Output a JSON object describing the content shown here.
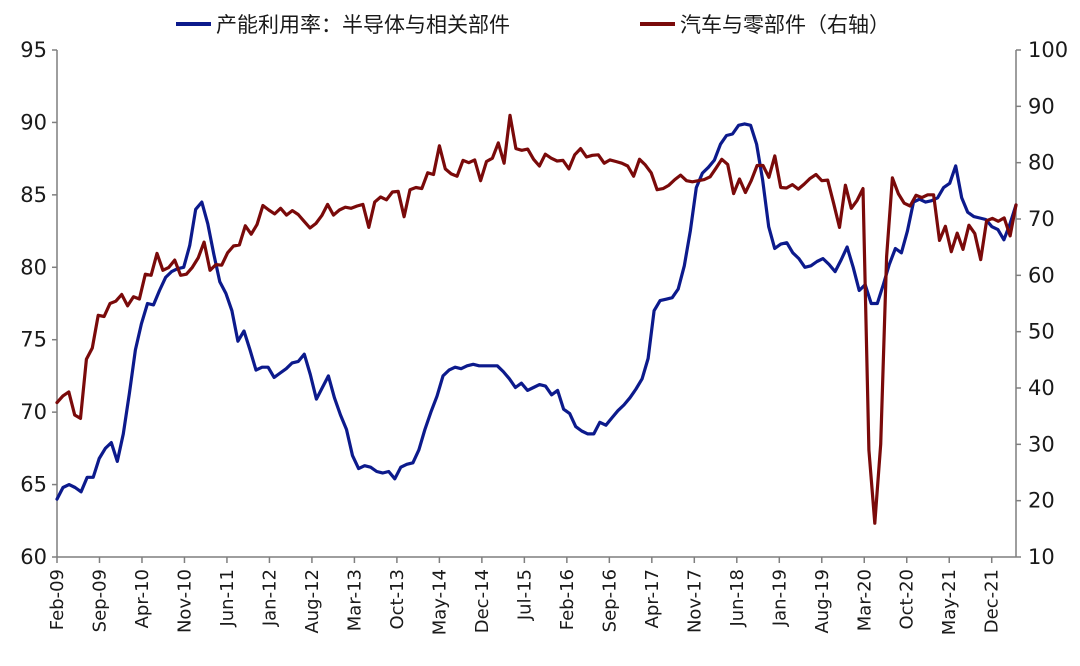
{
  "legend": {
    "series1_label": "产能利用率：半导体与相关部件",
    "series2_label": "汽车与零部件（右轴）"
  },
  "colors": {
    "series1": "#0c1a8c",
    "series2": "#7a0a0a",
    "axis": "#7f7f7f"
  },
  "chart_data": {
    "type": "line",
    "title": "",
    "xlabel": "",
    "ylabel": "",
    "y_left_lim": [
      60,
      95
    ],
    "y_left_ticks": [
      95,
      90,
      85,
      80,
      75,
      70,
      65,
      60
    ],
    "y_right_lim": [
      10,
      100
    ],
    "y_right_ticks": [
      100,
      90,
      80,
      70,
      60,
      50,
      40,
      30,
      20,
      10
    ],
    "x_tick_labels": [
      "Feb-09",
      "Sep-09",
      "Apr-10",
      "Nov-10",
      "Jun-11",
      "Jan-12",
      "Aug-12",
      "Mar-13",
      "Oct-13",
      "May-14",
      "Dec-14",
      "Jul-15",
      "Feb-16",
      "Sep-16",
      "Apr-17",
      "Nov-17",
      "Jun-18",
      "Jan-19",
      "Aug-19",
      "Mar-20",
      "Oct-20",
      "May-21",
      "Dec-21"
    ],
    "x_start": "2009-02",
    "x_end": "2022-04",
    "grid": false,
    "legend_position": "top",
    "series": [
      {
        "name": "产能利用率：半导体与相关部件",
        "axis": "left",
        "values": [
          64.0,
          64.8,
          65.0,
          64.8,
          64.5,
          65.5,
          65.5,
          66.8,
          67.5,
          67.9,
          66.6,
          68.5,
          71.3,
          74.3,
          76.1,
          77.5,
          77.4,
          78.4,
          79.3,
          79.7,
          79.9,
          80.0,
          81.5,
          84.0,
          84.5,
          83.0,
          80.9,
          79.0,
          78.2,
          77.0,
          74.9,
          75.6,
          74.3,
          72.9,
          73.1,
          73.1,
          72.4,
          72.7,
          73.0,
          73.4,
          73.5,
          74.0,
          72.6,
          70.9,
          71.7,
          72.5,
          71.0,
          69.8,
          68.8,
          67.0,
          66.1,
          66.3,
          66.2,
          65.9,
          65.8,
          65.9,
          65.4,
          66.2,
          66.4,
          66.5,
          67.4,
          68.8,
          70.0,
          71.1,
          72.5,
          72.9,
          73.1,
          73.0,
          73.2,
          73.3,
          73.2,
          73.2,
          73.2,
          73.2,
          72.8,
          72.3,
          71.7,
          72.0,
          71.5,
          71.7,
          71.9,
          71.8,
          71.2,
          71.5,
          70.2,
          69.9,
          69.0,
          68.7,
          68.5,
          68.5,
          69.3,
          69.1,
          69.6,
          70.1,
          70.5,
          71.0,
          71.6,
          72.3,
          73.7,
          77.0,
          77.7,
          77.8,
          77.9,
          78.5,
          80.1,
          82.5,
          85.5,
          86.5,
          86.9,
          87.4,
          88.5,
          89.1,
          89.2,
          89.8,
          89.9,
          89.8,
          88.5,
          86.0,
          82.8,
          81.3,
          81.6,
          81.7,
          81.0,
          80.6,
          80.0,
          80.1,
          80.4,
          80.6,
          80.2,
          79.7,
          80.5,
          81.4,
          80.0,
          78.4,
          78.8,
          77.5,
          77.5,
          78.8,
          80.2,
          81.3,
          81.0,
          82.5,
          84.5,
          84.7,
          84.5,
          84.6,
          84.8,
          85.5,
          85.8,
          87.0,
          84.8,
          83.8,
          83.5,
          83.4,
          83.3,
          82.8,
          82.6,
          81.9,
          83.0,
          84.3
        ]
      },
      {
        "name": "汽车与零部件（右轴）",
        "axis": "right",
        "values": [
          37.4,
          38.6,
          39.3,
          35.2,
          34.6,
          45.1,
          47.1,
          52.9,
          52.7,
          55.0,
          55.4,
          56.6,
          54.6,
          56.2,
          55.8,
          60.2,
          60.0,
          63.9,
          60.9,
          61.4,
          62.7,
          60.0,
          60.2,
          61.4,
          63.1,
          65.9,
          60.9,
          61.9,
          61.8,
          64.0,
          65.2,
          65.4,
          68.8,
          67.3,
          69.0,
          72.4,
          71.6,
          70.9,
          71.9,
          70.7,
          71.5,
          70.8,
          69.6,
          68.4,
          69.2,
          70.6,
          72.6,
          70.7,
          71.6,
          72.1,
          71.9,
          72.3,
          72.6,
          68.5,
          73.0,
          73.9,
          73.4,
          74.8,
          74.9,
          70.4,
          75.2,
          75.6,
          75.4,
          78.2,
          77.9,
          83.0,
          78.9,
          78.0,
          77.6,
          80.4,
          80.0,
          80.5,
          76.8,
          80.2,
          80.8,
          83.5,
          79.9,
          88.4,
          82.5,
          82.2,
          82.4,
          80.6,
          79.4,
          81.5,
          80.8,
          80.3,
          80.4,
          78.9,
          81.4,
          82.5,
          81.0,
          81.3,
          81.4,
          79.9,
          80.5,
          80.2,
          79.9,
          79.4,
          77.6,
          80.6,
          79.6,
          78.2,
          75.2,
          75.4,
          76.0,
          77.0,
          77.8,
          76.8,
          76.6,
          76.8,
          77.0,
          77.5,
          79.0,
          80.6,
          79.7,
          74.5,
          77.1,
          74.7,
          76.8,
          79.5,
          79.5,
          77.4,
          81.2,
          75.6,
          75.5,
          76.1,
          75.3,
          76.2,
          77.2,
          77.9,
          76.8,
          76.9,
          72.8,
          68.5,
          76.0,
          71.9,
          73.3,
          75.4,
          29.0,
          16.0,
          30.0,
          63.3,
          77.3,
          74.5,
          72.8,
          72.3,
          74.2,
          73.8,
          74.3,
          74.3,
          66.2,
          68.7,
          64.2,
          67.5,
          64.6,
          68.9,
          67.4,
          62.8,
          69.7,
          70.1,
          69.6,
          70.2,
          67.0,
          72.5
        ]
      }
    ]
  }
}
